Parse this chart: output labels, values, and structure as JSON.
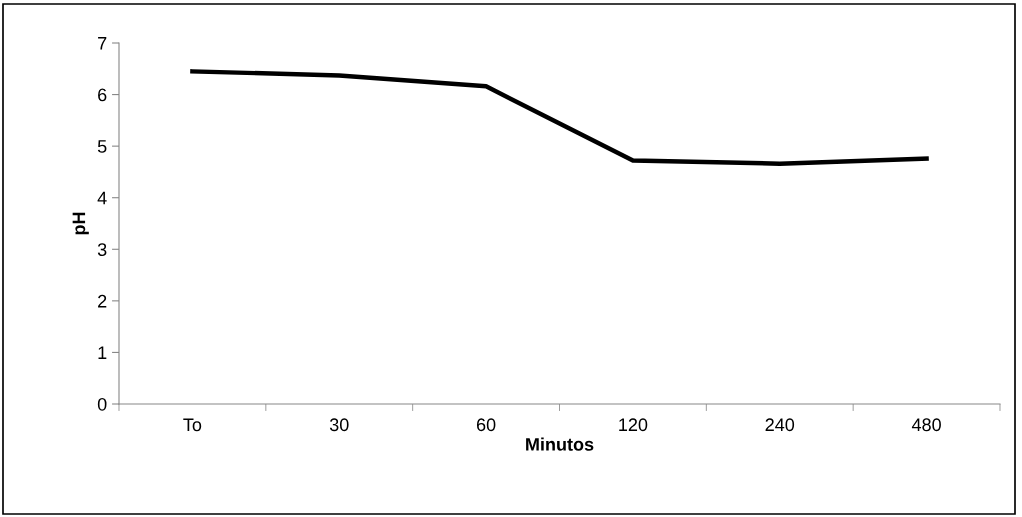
{
  "chart_data": {
    "type": "line",
    "xlabel": "Minutos",
    "ylabel": "pH",
    "categories": [
      "To",
      "30",
      "60",
      "120",
      "240",
      "480"
    ],
    "series": [
      {
        "color": "#000000",
        "values": [
          6.45,
          6.37,
          6.16,
          4.72,
          4.66,
          4.76
        ]
      }
    ],
    "ylim": [
      0,
      7
    ],
    "yticks": [
      0,
      1,
      2,
      3,
      4,
      5,
      6,
      7
    ],
    "grid": false,
    "legend": false,
    "marker": "none",
    "line_style": "solid"
  }
}
